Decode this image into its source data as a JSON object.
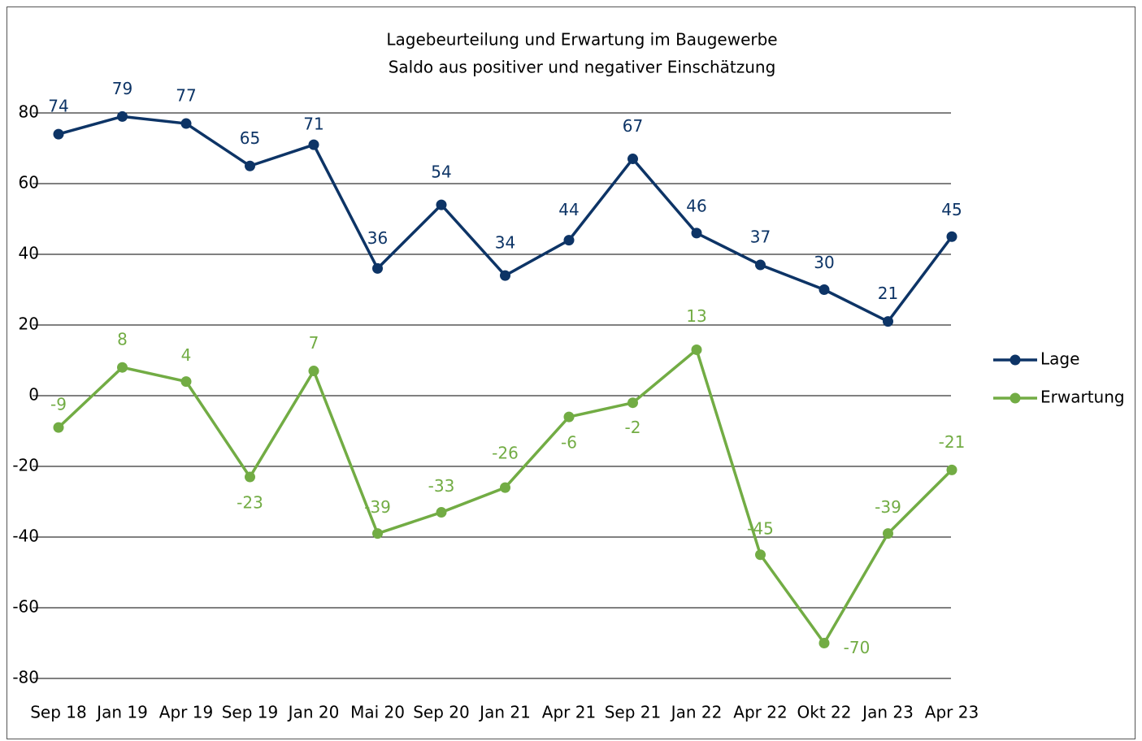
{
  "chart_data": {
    "type": "line",
    "title": "Lagebeurteilung und Erwartung im Baugewerbe",
    "subtitle": "Saldo aus positiver und negativer Einschätzung",
    "categories": [
      "Sep 18",
      "Jan 19",
      "Apr 19",
      "Sep 19",
      "Jan 20",
      "Mai 20",
      "Sep 20",
      "Jan 21",
      "Apr 21",
      "Sep 21",
      "Jan 22",
      "Apr 22",
      "Okt 22",
      "Jan 23",
      "Apr 23"
    ],
    "series": [
      {
        "name": "Lage",
        "color": "#0d3466",
        "values": [
          74,
          79,
          77,
          65,
          71,
          36,
          54,
          34,
          44,
          67,
          46,
          37,
          30,
          21,
          45
        ]
      },
      {
        "name": "Erwartung",
        "color": "#72ac44",
        "values": [
          -9,
          8,
          4,
          -23,
          7,
          -39,
          -33,
          -26,
          -6,
          -2,
          13,
          -45,
          -70,
          -39,
          -21
        ]
      }
    ],
    "ylim": [
      -80,
      80
    ],
    "yticks": [
      -80,
      -60,
      -40,
      -20,
      0,
      20,
      40,
      60,
      80
    ],
    "grid": true,
    "legend": "right"
  }
}
